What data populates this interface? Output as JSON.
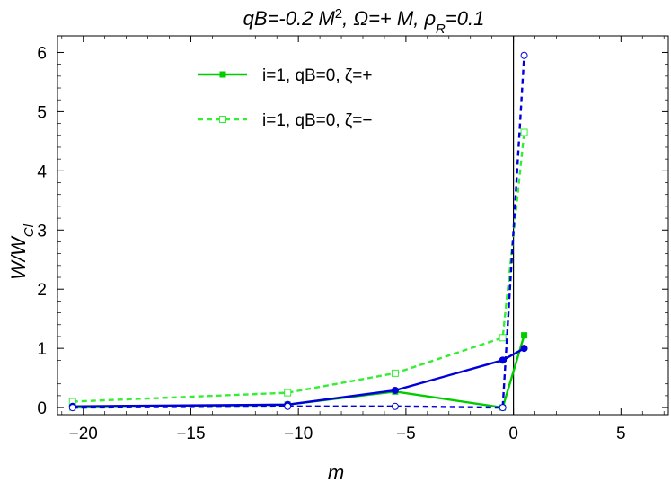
{
  "chart_data": {
    "type": "line",
    "title": "qB=-0.2 M², Ω=+ M, ρR=0.1",
    "xlabel": "m",
    "ylabel": "W/WCl",
    "xlim": [
      -21.2,
      7.2
    ],
    "ylim": [
      -0.12,
      6.28
    ],
    "xticks": [
      -20,
      -15,
      -10,
      -5,
      0,
      5
    ],
    "xtick_labels": [
      "−20",
      "−15",
      "−10",
      "−5",
      "0",
      "5"
    ],
    "yticks": [
      0,
      1,
      2,
      3,
      4,
      5,
      6
    ],
    "ytick_labels": [
      "0",
      "1",
      "2",
      "3",
      "4",
      "5",
      "6"
    ],
    "grid": false,
    "legend_position": "top-center",
    "vertical_reference_line_x": 0,
    "series": [
      {
        "name": "i=1, qB=0, ζ=+",
        "color": "#00cc00",
        "line_style": "solid",
        "marker": "filled-square",
        "x": [
          -20.5,
          -10.5,
          -5.5,
          -0.5,
          0.5
        ],
        "y": [
          0.0,
          0.05,
          0.27,
          0.0,
          1.22
        ]
      },
      {
        "name": "i=1, qB=0, ζ=−",
        "color": "#33ee33",
        "line_style": "dashed",
        "marker": "open-square",
        "x": [
          -20.5,
          -10.5,
          -5.5,
          -0.5,
          0.5
        ],
        "y": [
          0.1,
          0.25,
          0.58,
          1.18,
          4.65
        ]
      },
      {
        "name": "",
        "color": "#0000dd",
        "line_style": "solid",
        "marker": "filled-circle",
        "x": [
          -20.5,
          -10.5,
          -5.5,
          -0.5,
          0.5
        ],
        "y": [
          0.02,
          0.05,
          0.29,
          0.8,
          1.0
        ]
      },
      {
        "name": "",
        "color": "#0000dd",
        "line_style": "dashed",
        "marker": "open-circle",
        "x": [
          -20.5,
          -10.5,
          -5.5,
          -0.5,
          0.5
        ],
        "y": [
          0.0,
          0.02,
          0.02,
          0.0,
          5.95
        ]
      }
    ]
  }
}
